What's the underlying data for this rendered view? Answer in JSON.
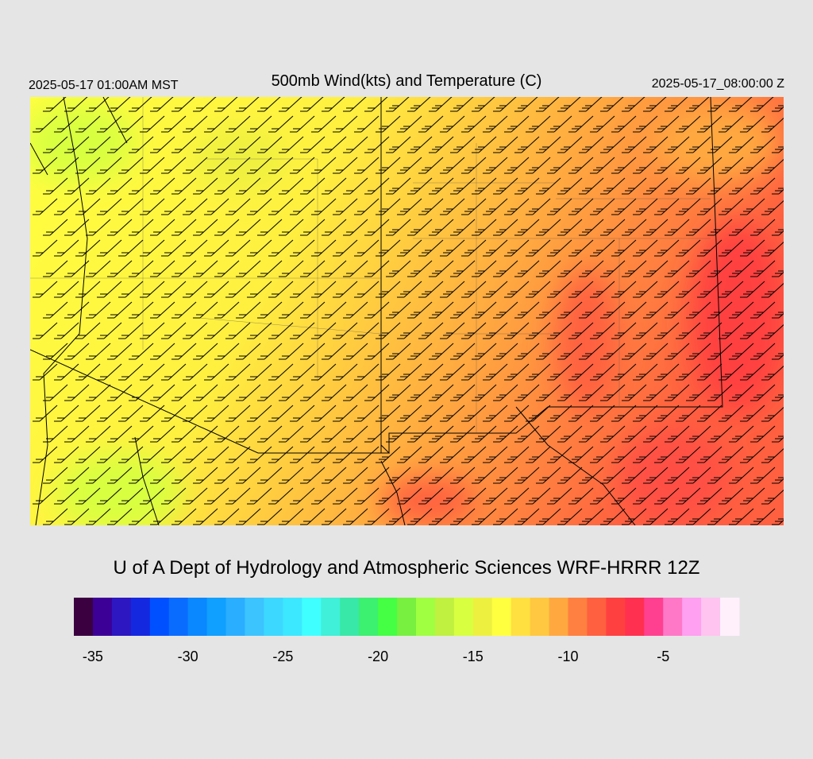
{
  "header": {
    "local_time": "2025-05-17 01:00AM MST",
    "title": "500mb Wind(kts) and Temperature (C)",
    "valid_time": "2025-05-17_08:00:00 Z"
  },
  "footer": {
    "credit": "U of A Dept of Hydrology and Atmospheric Sciences WRF-HRRR 12Z"
  },
  "colorbar": {
    "range": [
      -36,
      -1
    ],
    "colors": [
      "#3a0040",
      "#3c0096",
      "#2c17c0",
      "#1428e0",
      "#0050ff",
      "#0a6cff",
      "#0a88ff",
      "#10a0ff",
      "#2aaeff",
      "#3cc4ff",
      "#3cd8ff",
      "#3ce8ff",
      "#40ffff",
      "#40f0d8",
      "#38e8a8",
      "#3cf070",
      "#44ff44",
      "#78f040",
      "#a0ff40",
      "#c0f040",
      "#d8ff40",
      "#eef040",
      "#ffff40",
      "#ffe040",
      "#ffc840",
      "#ffa840",
      "#ff8040",
      "#ff6040",
      "#ff4040",
      "#ff3050",
      "#ff4090",
      "#ff78c8",
      "#ffa0f0",
      "#ffc4f0",
      "#fff0fc"
    ],
    "ticks": [
      -35,
      -30,
      -25,
      -20,
      -15,
      -10,
      -5
    ]
  }
}
